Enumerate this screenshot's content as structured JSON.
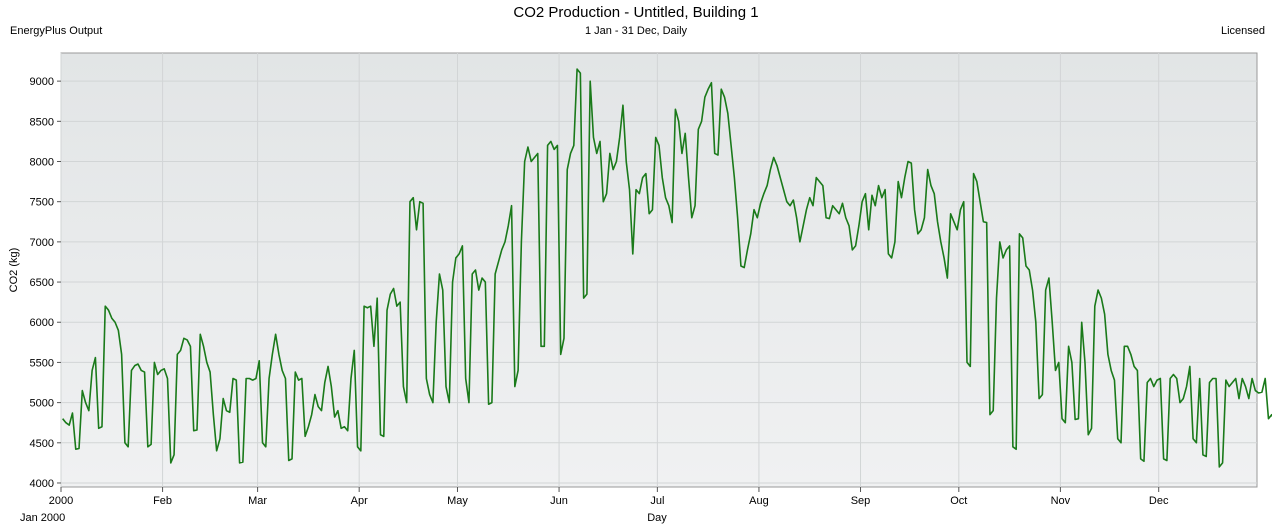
{
  "header": {
    "title": "CO2 Production - Untitled, Building 1",
    "subtitle": "1 Jan - 31 Dec, Daily",
    "left_note": "EnergyPlus Output",
    "right_note": "Licensed"
  },
  "chart_data": {
    "type": "line",
    "title": "CO2 Production - Untitled, Building 1",
    "subtitle": "1 Jan - 31 Dec, Daily",
    "xlabel": "Day",
    "ylabel": "CO2 (kg)",
    "ylim": [
      3950,
      9350
    ],
    "yticks": [
      4000,
      4500,
      5000,
      5500,
      6000,
      6500,
      7000,
      7500,
      8000,
      8500,
      9000
    ],
    "xticks": [
      {
        "label": "2000",
        "day": 0
      },
      {
        "label": "Feb",
        "day": 31
      },
      {
        "label": "Mar",
        "day": 60
      },
      {
        "label": "Apr",
        "day": 91
      },
      {
        "label": "May",
        "day": 121
      },
      {
        "label": "Jun",
        "day": 152
      },
      {
        "label": "Jul",
        "day": 182
      },
      {
        "label": "Aug",
        "day": 213
      },
      {
        "label": "Sep",
        "day": 244
      },
      {
        "label": "Oct",
        "day": 274
      },
      {
        "label": "Nov",
        "day": 305
      },
      {
        "label": "Dec",
        "day": 335
      }
    ],
    "xlabel_sub": "Jan  2000",
    "grid": true,
    "line_color": "#1a7a1a",
    "plot_bg": "#eaeced",
    "series": [
      {
        "name": "",
        "values": [
          4800,
          4750,
          4720,
          4870,
          4420,
          4430,
          5150,
          5000,
          4900,
          5400,
          5560,
          4680,
          4700,
          6200,
          6150,
          6050,
          6000,
          5900,
          5600,
          4500,
          4450,
          5400,
          5460,
          5480,
          5400,
          5380,
          4450,
          4480,
          5500,
          5350,
          5400,
          5420,
          5300,
          4250,
          4350,
          5600,
          5650,
          5800,
          5780,
          5700,
          4650,
          4660,
          5850,
          5700,
          5500,
          5380,
          4850,
          4400,
          4550,
          5050,
          4900,
          4880,
          5300,
          5280,
          4250,
          4260,
          5300,
          5300,
          5280,
          5300,
          5520,
          4500,
          4450,
          5300,
          5600,
          5850,
          5600,
          5400,
          5300,
          4280,
          4300,
          5380,
          5280,
          5300,
          4580,
          4700,
          4850,
          5100,
          4950,
          4900,
          5250,
          5450,
          5200,
          4820,
          4900,
          4680,
          4700,
          4650,
          5300,
          5650,
          4450,
          4400,
          6200,
          6180,
          6200,
          5700,
          6300,
          4600,
          4580,
          6150,
          6350,
          6420,
          6200,
          6250,
          5200,
          5000,
          7500,
          7550,
          7150,
          7500,
          7480,
          5300,
          5100,
          5000,
          6000,
          6600,
          6400,
          5200,
          5000,
          6500,
          6800,
          6850,
          6950,
          5300,
          5000,
          6600,
          6650,
          6400,
          6550,
          6500,
          4980,
          5000,
          6600,
          6750,
          6900,
          7000,
          7200,
          7450,
          5200,
          5400,
          7000,
          8000,
          8180,
          8000,
          8050,
          8100,
          5700,
          5700,
          8200,
          8250,
          8150,
          8200,
          5600,
          5800,
          7900,
          8100,
          8200,
          9150,
          9100,
          6300,
          6350,
          9000,
          8300,
          8100,
          8250,
          7500,
          7600,
          8100,
          7900,
          8000,
          8300,
          8700,
          8000,
          7650,
          6850,
          7650,
          7600,
          7800,
          7850,
          7350,
          7400,
          8300,
          8200,
          7800,
          7550,
          7450,
          7240,
          8650,
          8500,
          8100,
          8350,
          7800,
          7300,
          7450,
          8400,
          8500,
          8800,
          8900,
          8980,
          8100,
          8080,
          8900,
          8800,
          8600,
          8200,
          7800,
          7300,
          6700,
          6680,
          6900,
          7100,
          7400,
          7300,
          7480,
          7600,
          7700,
          7900,
          8050,
          7950,
          7800,
          7650,
          7500,
          7450,
          7520,
          7300,
          7000,
          7200,
          7400,
          7550,
          7450,
          7800,
          7750,
          7700,
          7300,
          7290,
          7450,
          7400,
          7350,
          7480,
          7300,
          7200,
          6900,
          6950,
          7200,
          7500,
          7600,
          7150,
          7580,
          7450,
          7700,
          7550,
          7650,
          6850,
          6800,
          7000,
          7750,
          7550,
          7800,
          8000,
          7980,
          7400,
          7100,
          7150,
          7300,
          7900,
          7700,
          7600,
          7250,
          7000,
          6800,
          6550,
          7350,
          7250,
          7150,
          7400,
          7500,
          5500,
          5450,
          7850,
          7750,
          7500,
          7250,
          7240,
          4850,
          4900,
          6300,
          7000,
          6800,
          6900,
          6950,
          4450,
          4420,
          7100,
          7050,
          6700,
          6650,
          6400,
          6000,
          5050,
          5100,
          6400,
          6550,
          6000,
          5400,
          5500,
          4800,
          4750,
          5700,
          5500,
          4790,
          4800,
          6000,
          5500,
          4600,
          4680,
          6200,
          6400,
          6300,
          6100,
          5600,
          5400,
          5280,
          4550,
          4500,
          5700,
          5700,
          5600,
          5450,
          5400,
          4300,
          4270,
          5250,
          5300,
          5200,
          5280,
          5300,
          4300,
          4280,
          5300,
          5350,
          5300,
          5000,
          5050,
          5200,
          5450,
          4550,
          4500,
          5300,
          4350,
          4330,
          5250,
          5300,
          5300,
          4200,
          4250,
          5280,
          5200,
          5250,
          5300,
          5050,
          5300,
          5200,
          5050,
          5300,
          5150,
          5120,
          5130,
          5300,
          4800,
          4850,
          4770,
          4800,
          5140,
          5100,
          5040,
          4960,
          4980,
          5000,
          4950,
          4980
        ]
      }
    ]
  }
}
